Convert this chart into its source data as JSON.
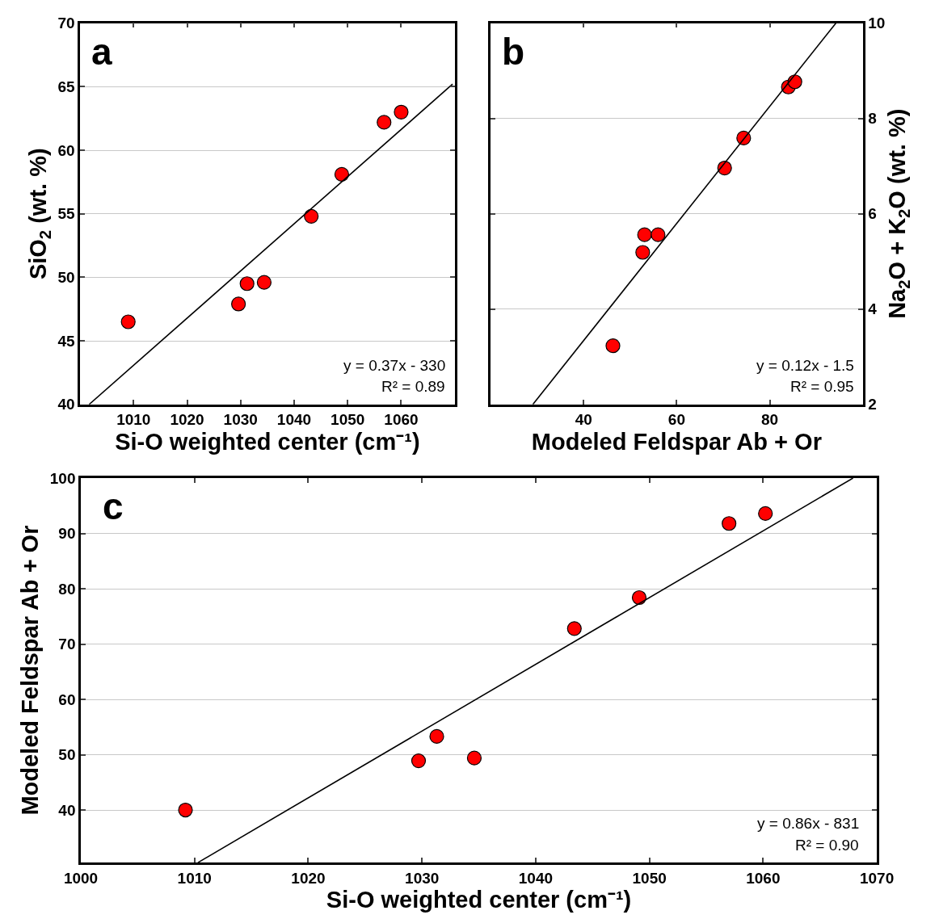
{
  "chart_data": [
    {
      "type": "scatter",
      "xlabel": "Si-O weighted center (cm⁻¹)",
      "ylabel": "SiO$_{2}$ (wt. %)",
      "xlim": [
        1000,
        1070
      ],
      "xticks": [
        1010,
        1020,
        1030,
        1040,
        1050,
        1060
      ],
      "ylim": [
        40,
        70
      ],
      "yticks": [
        40,
        45,
        50,
        55,
        60,
        65,
        70
      ],
      "grid": "y",
      "annotations": [
        "a",
        "y = 0.37x - 330",
        "R² = 0.89"
      ],
      "series": [
        {
          "color": "#ff0000",
          "marker": "circle",
          "x": [
            1009.0,
            1029.6,
            1031.2,
            1034.4,
            1043.2,
            1048.9,
            1056.8,
            1060.0
          ],
          "values": [
            46.5,
            47.9,
            49.5,
            49.6,
            54.8,
            58.1,
            62.2,
            63.0
          ]
        },
        {
          "type": "line",
          "color": "#000000",
          "marker": "none",
          "line_style": "solid",
          "x": [
            1001.7,
            1069.6
          ],
          "values": [
            40,
            65.2
          ]
        }
      ]
    },
    {
      "type": "scatter",
      "xlabel": "Modeled Feldspar Ab + Or",
      "y2label": "Na$_{2}$O + K$_{2}$O (wt. %)",
      "xlim": [
        20,
        100
      ],
      "xticks": [
        40,
        60,
        80
      ],
      "y2lim": [
        2,
        10
      ],
      "y2ticks": [
        2,
        4,
        6,
        8,
        10
      ],
      "grid": "y",
      "annotations": [
        "b",
        "y = 0.12x - 1.5",
        "R² = 0.95"
      ],
      "series": [
        {
          "axis": "y2",
          "color": "#ff0000",
          "marker": "circle",
          "x": [
            46.3,
            52.7,
            53.1,
            56.0,
            70.3,
            74.4,
            84.0,
            85.4
          ],
          "values": [
            3.23,
            5.19,
            5.56,
            5.56,
            6.96,
            7.59,
            8.66,
            8.77
          ]
        },
        {
          "type": "line",
          "axis": "y2",
          "color": "#000000",
          "marker": "none",
          "line_style": "solid",
          "x": [
            29.1,
            94.2
          ],
          "values": [
            2,
            10
          ]
        }
      ]
    },
    {
      "type": "scatter",
      "xlabel": "Si-O weighted center (cm⁻¹)",
      "ylabel": "Modeled Feldspar Ab + Or",
      "xlim": [
        1000,
        1070
      ],
      "xticks": [
        1000,
        1010,
        1020,
        1030,
        1040,
        1050,
        1060,
        1070
      ],
      "ylim": [
        30.5,
        100
      ],
      "yticks": [
        40,
        50,
        60,
        70,
        80,
        90,
        100
      ],
      "grid": "y",
      "annotations": [
        "c",
        "y = 0.86x - 831",
        "R² = 0.90"
      ],
      "series": [
        {
          "color": "#ff0000",
          "marker": "circle",
          "x": [
            1009.2,
            1029.7,
            1031.3,
            1034.6,
            1043.4,
            1049.1,
            1057.0,
            1060.2
          ],
          "values": [
            40,
            48.9,
            53.3,
            49.4,
            72.8,
            78.4,
            91.8,
            93.6
          ]
        },
        {
          "type": "line",
          "color": "#000000",
          "marker": "none",
          "line_style": "solid",
          "x": [
            1010.3,
            1067.9
          ],
          "values": [
            30.5,
            100
          ]
        }
      ]
    }
  ]
}
